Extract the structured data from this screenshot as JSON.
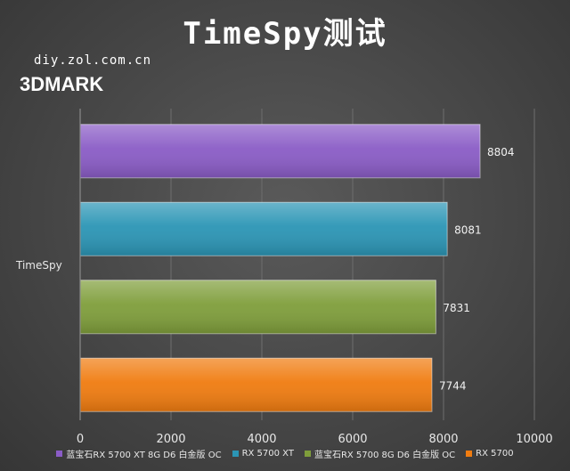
{
  "title": "TimeSpy测试",
  "watermark": "diy.zol.com.cn",
  "brand": "3DMARK",
  "chart_data": {
    "type": "bar",
    "orientation": "horizontal",
    "categories": [
      "TimeSpy"
    ],
    "series": [
      {
        "name": "蓝宝石RX 5700 XT 8G D6 白金版 OC",
        "values": [
          8804
        ],
        "color": "#8a5cc6"
      },
      {
        "name": "RX 5700 XT",
        "values": [
          8081
        ],
        "color": "#2b95b5"
      },
      {
        "name": "蓝宝石RX 5700  8G D6 白金版 OC",
        "values": [
          7831
        ],
        "color": "#7f9e3b"
      },
      {
        "name": "RX 5700",
        "values": [
          7744
        ],
        "color": "#f07c10"
      }
    ],
    "xlim": [
      0,
      10000
    ],
    "xticks": [
      0,
      2000,
      4000,
      6000,
      8000,
      10000
    ],
    "grid": true,
    "legend_position": "bottom"
  }
}
